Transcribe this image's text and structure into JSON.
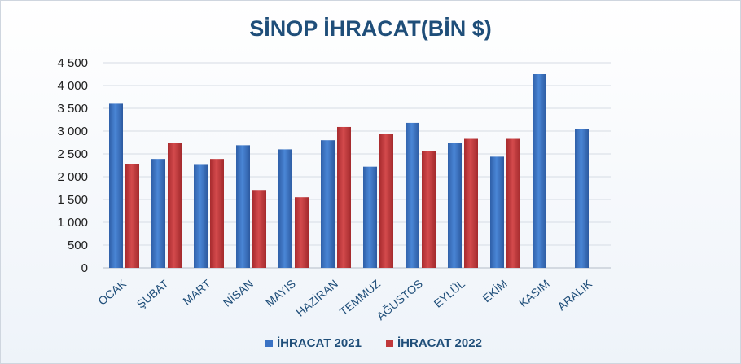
{
  "chart_data": {
    "type": "bar",
    "title": "SİNOP İHRACAT(BİN $)",
    "xlabel": "",
    "ylabel": "",
    "ylim": [
      0,
      4500
    ],
    "yticks": [
      0,
      500,
      1000,
      1500,
      2000,
      2500,
      3000,
      3500,
      4000,
      4500
    ],
    "ytick_labels": [
      "0",
      "500",
      "1 000",
      "1 500",
      "2 000",
      "2 500",
      "3 000",
      "3 500",
      "4 000",
      "4 500"
    ],
    "categories": [
      "OCAK",
      "ŞUBAT",
      "MART",
      "NİSAN",
      "MAYIS",
      "HAZİRAN",
      "TEMMUZ",
      "AĞUSTOS",
      "EYLÜL",
      "EKİM",
      "KASIM",
      "ARALIK"
    ],
    "series": [
      {
        "name": "İHRACAT 2021",
        "color": "#3a72c4",
        "values": [
          3600,
          2390,
          2260,
          2690,
          2600,
          2800,
          2220,
          3180,
          2740,
          2440,
          4250,
          3050
        ]
      },
      {
        "name": "İHRACAT 2022",
        "color": "#c0383b",
        "values": [
          2280,
          2740,
          2390,
          1710,
          1550,
          3090,
          2930,
          2560,
          2830,
          2830,
          null,
          null
        ]
      }
    ],
    "grid": true,
    "legend_position": "bottom"
  }
}
